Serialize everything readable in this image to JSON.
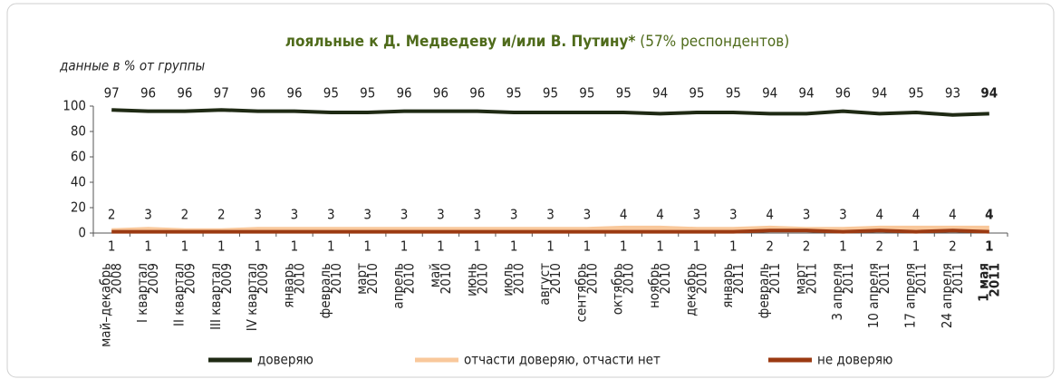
{
  "chart_data": {
    "type": "line",
    "title": "лояльные к Д. Медведеву и/или В. Путину*",
    "title_note": "(57% респондентов)",
    "subtitle": "данные в % от группы",
    "categories": [
      [
        "май–декабрь",
        "2008"
      ],
      [
        "I квартал",
        "2009"
      ],
      [
        "II квартал",
        "2009"
      ],
      [
        "III квартал",
        "2009"
      ],
      [
        "IV квартал",
        "2009"
      ],
      [
        "январь",
        "2010"
      ],
      [
        "февраль",
        "2010"
      ],
      [
        "март",
        "2010"
      ],
      [
        "апрель",
        "2010"
      ],
      [
        "май",
        "2010"
      ],
      [
        "июнь",
        "2010"
      ],
      [
        "июль",
        "2010"
      ],
      [
        "август",
        "2010"
      ],
      [
        "сентябрь",
        "2010"
      ],
      [
        "октябрь",
        "2010"
      ],
      [
        "ноябрь",
        "2010"
      ],
      [
        "декабрь",
        "2010"
      ],
      [
        "январь",
        "2011"
      ],
      [
        "февраль",
        "2011"
      ],
      [
        "март",
        "2011"
      ],
      [
        "3 апреля",
        "2011"
      ],
      [
        "10 апреля",
        "2011"
      ],
      [
        "17 апреля",
        "2011"
      ],
      [
        "24 апреля",
        "2011"
      ],
      [
        "1 мая",
        "2011"
      ]
    ],
    "series": [
      {
        "name": "доверяю",
        "color": "#1f2a14",
        "values": [
          97,
          96,
          96,
          97,
          96,
          96,
          95,
          95,
          96,
          96,
          96,
          95,
          95,
          95,
          95,
          94,
          95,
          95,
          94,
          94,
          96,
          94,
          95,
          93,
          94
        ]
      },
      {
        "name": "отчасти доверяю, отчасти нет",
        "color": "#f9c89b",
        "values": [
          2,
          3,
          2,
          2,
          3,
          3,
          3,
          3,
          3,
          3,
          3,
          3,
          3,
          3,
          4,
          4,
          3,
          3,
          4,
          3,
          3,
          4,
          4,
          4,
          4
        ]
      },
      {
        "name": "не доверяю",
        "color": "#9b3a12",
        "values": [
          1,
          1,
          1,
          1,
          1,
          1,
          1,
          1,
          1,
          1,
          1,
          1,
          1,
          1,
          1,
          1,
          1,
          1,
          2,
          2,
          1,
          2,
          1,
          2,
          1
        ]
      }
    ],
    "ylim": [
      0,
      100
    ],
    "yticks": [
      0,
      20,
      40,
      60,
      80,
      100
    ]
  }
}
